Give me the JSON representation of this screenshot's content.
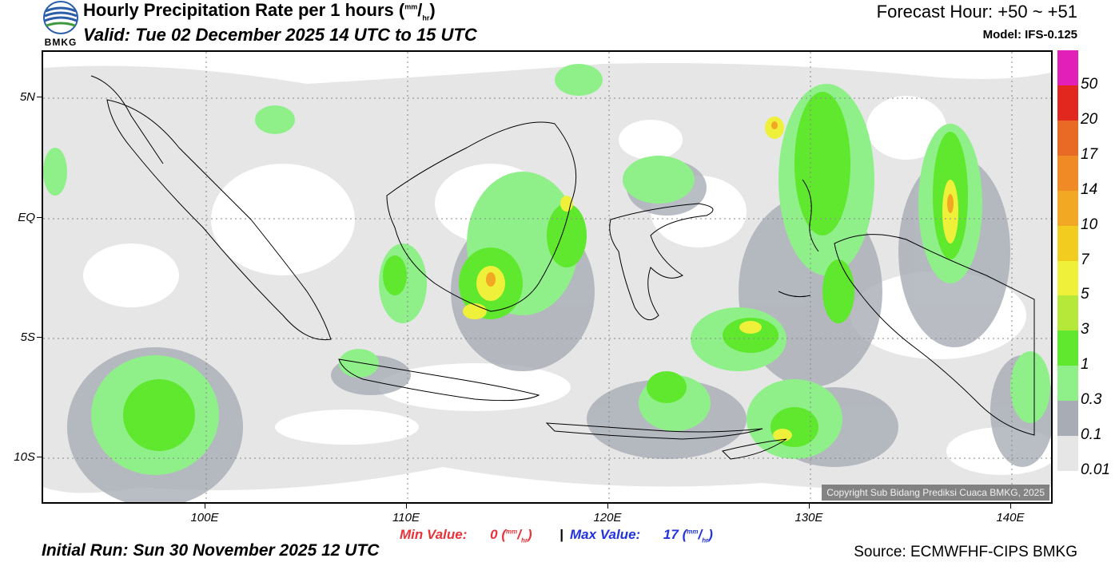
{
  "header": {
    "title_main": "Hourly Precipitation Rate per 1 hours (",
    "title_unit_num": "mm",
    "title_unit_den": "hr",
    "title_close": ")",
    "valid": "Valid: Tue 02 December 2025 14 UTC to 15 UTC",
    "forecast_hour": "Forecast Hour: +50 ~ +51",
    "model": "Model: IFS-0.125"
  },
  "logo": {
    "text": "BMKG",
    "icon": "bmkg-globe-icon"
  },
  "map": {
    "lat_labels": [
      "5N",
      "EQ",
      "5S",
      "10S"
    ],
    "lon_labels": [
      "100E",
      "110E",
      "120E",
      "130E",
      "140E"
    ],
    "copyright": "Copyright Sub Bidang Prediksi Cuaca BMKG, 2025"
  },
  "colorbar": {
    "labels": [
      "50",
      "20",
      "17",
      "14",
      "10",
      "7",
      "5",
      "3",
      "1",
      "0.3",
      "0.1",
      "0.01"
    ],
    "colors": [
      "#e21fb8",
      "#e2271f",
      "#e86a24",
      "#f08a24",
      "#f2a822",
      "#f2cc1e",
      "#eef03a",
      "#b6e83a",
      "#5fe82e",
      "#8ff08a",
      "#a8adb5",
      "#e6e6e6"
    ]
  },
  "footer": {
    "min_label": "Min Value:",
    "min_value": "0",
    "separator": "|",
    "max_label": "Max Value:",
    "max_value": "17",
    "unit_num": "mm",
    "unit_den": "hr",
    "min_color": "#e8333a",
    "max_color": "#2233dd",
    "initial_run": "Initial Run: Sun 30 November 2025 12 UTC",
    "source": "Source: ECMWFHF-CIPS BMKG"
  }
}
